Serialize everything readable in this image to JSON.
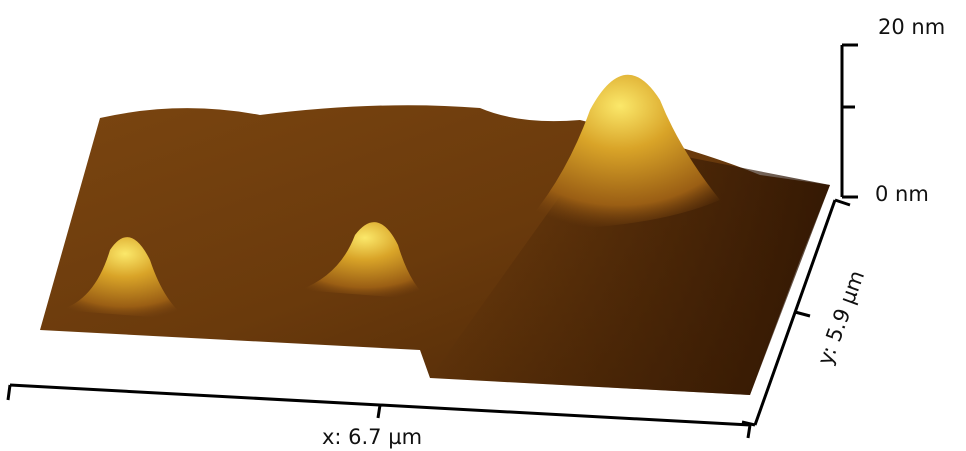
{
  "z_axis": {
    "top_label": "20 nm",
    "bottom_label": "0 nm"
  },
  "x_axis": {
    "label": "x: 6.7 µm"
  },
  "y_axis": {
    "label": "y: 5.9 µm"
  }
}
